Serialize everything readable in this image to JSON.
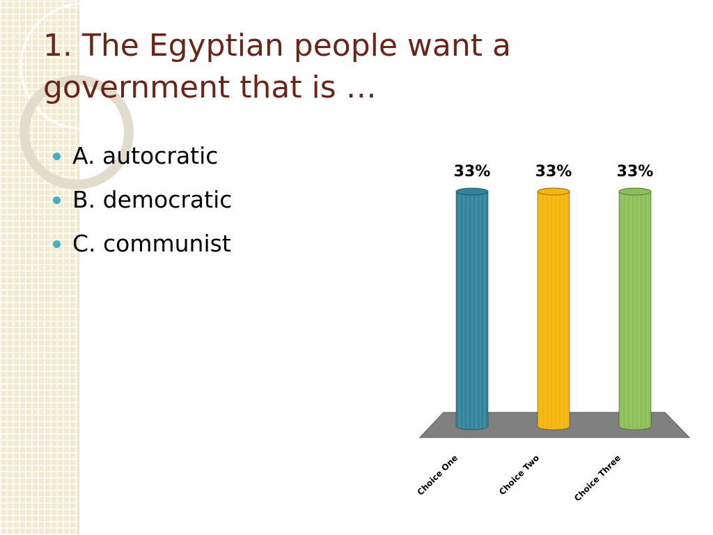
{
  "slide": {
    "title": "1.  The Egyptian people want a government that is …",
    "bullets": [
      "A.  autocratic",
      "B.  democratic",
      "C.  communist"
    ]
  },
  "chart_data": {
    "type": "bar",
    "categories": [
      "Choice One",
      "Choice Two",
      "Choice Three"
    ],
    "values": [
      33,
      33,
      33
    ],
    "value_labels": [
      "33%",
      "33%",
      "33%"
    ],
    "colors": [
      "#31849b",
      "#f5b50f",
      "#8cc15a"
    ]
  }
}
